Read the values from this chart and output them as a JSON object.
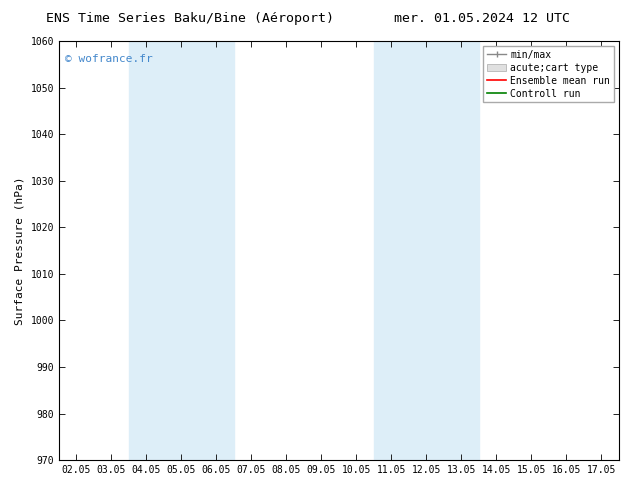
{
  "title_left": "ENS Time Series Baku/Bine (Aéroport)",
  "title_right": "mer. 01.05.2024 12 UTC",
  "ylabel": "Surface Pressure (hPa)",
  "ylim": [
    970,
    1060
  ],
  "yticks": [
    970,
    980,
    990,
    1000,
    1010,
    1020,
    1030,
    1040,
    1050,
    1060
  ],
  "xtick_labels": [
    "02.05",
    "03.05",
    "04.05",
    "05.05",
    "06.05",
    "07.05",
    "08.05",
    "09.05",
    "10.05",
    "11.05",
    "12.05",
    "13.05",
    "14.05",
    "15.05",
    "16.05",
    "17.05"
  ],
  "shaded_regions": [
    {
      "xstart": 2,
      "xend": 4,
      "color": "#ddeef8"
    },
    {
      "xstart": 9,
      "xend": 11,
      "color": "#ddeef8"
    }
  ],
  "watermark": "© wofrance.fr",
  "watermark_color": "#4488cc",
  "legend_entries": [
    {
      "label": "min/max",
      "color": "#aaaaaa",
      "style": "errorbar"
    },
    {
      "label": "acute;cart type",
      "color": "#cccccc",
      "style": "box"
    },
    {
      "label": "Ensemble mean run",
      "color": "#ff0000",
      "style": "line"
    },
    {
      "label": "Controll run",
      "color": "#008000",
      "style": "line"
    }
  ],
  "bg_color": "#ffffff",
  "spine_color": "#000000",
  "title_fontsize": 9.5,
  "tick_fontsize": 7,
  "ylabel_fontsize": 8,
  "watermark_fontsize": 8,
  "legend_fontsize": 7
}
